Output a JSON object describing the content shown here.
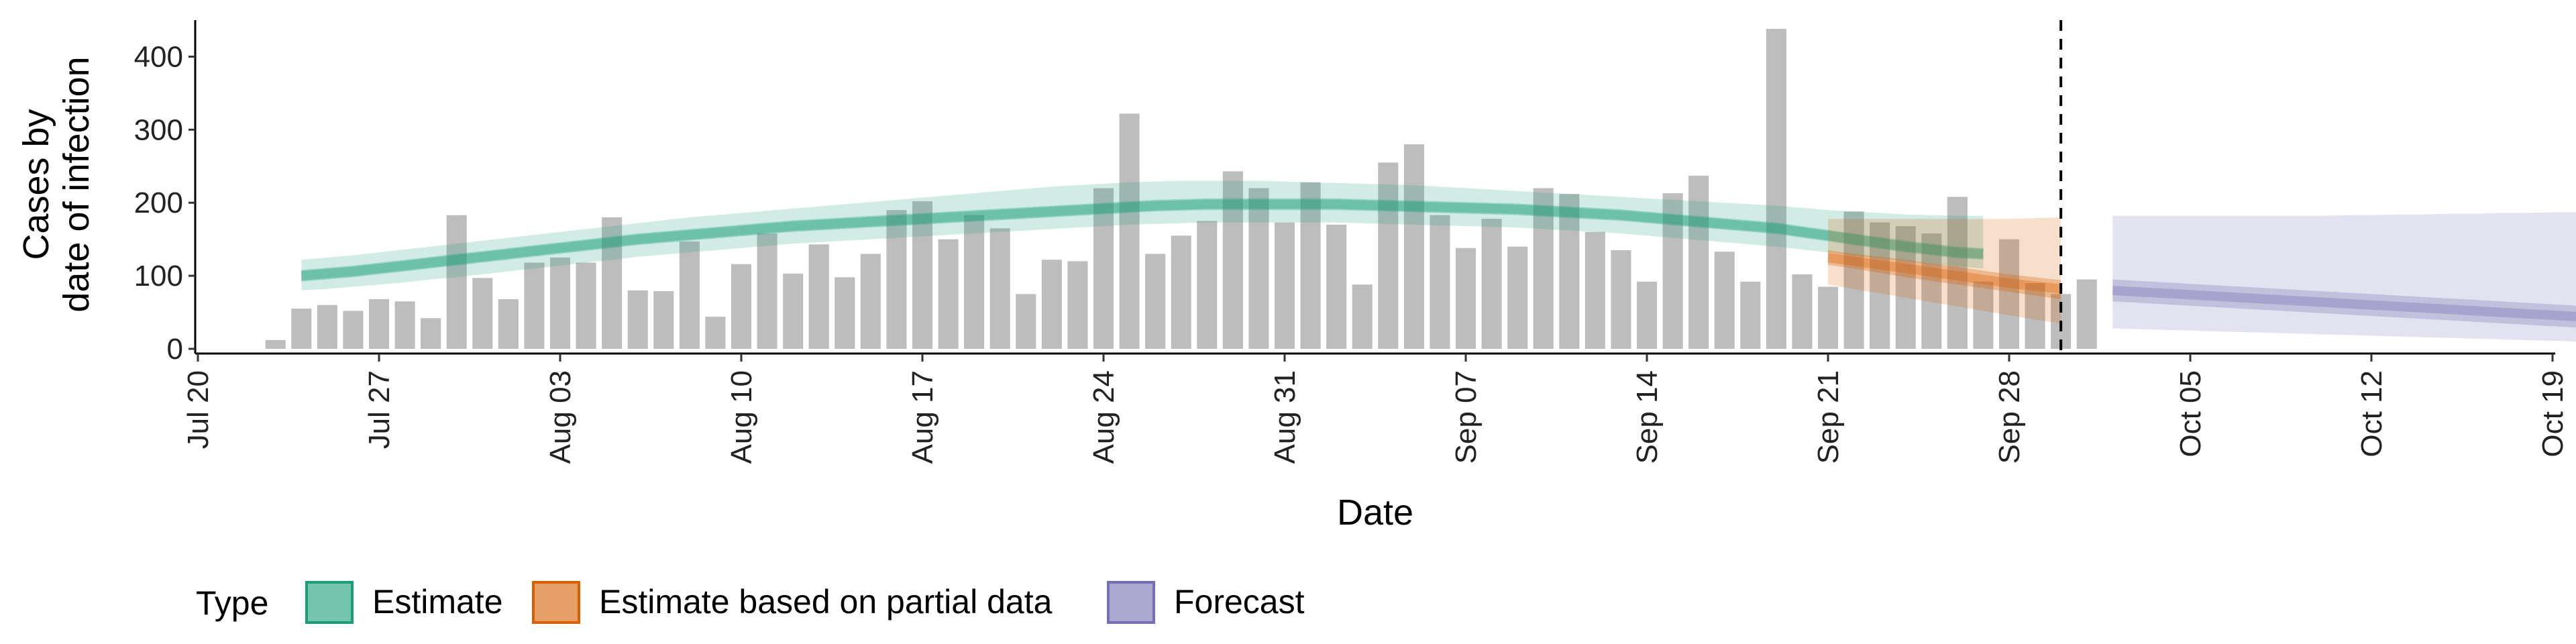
{
  "chart_data": {
    "type": "bar",
    "xlabel": "Date",
    "ylabel_lines": [
      "Cases by",
      "date of infection"
    ],
    "x_range": [
      "2020-07-20",
      "2020-10-19"
    ],
    "ylim": [
      0,
      450
    ],
    "yticks": [
      0,
      100,
      200,
      300,
      400
    ],
    "xticks": [
      {
        "date": "2020-07-20",
        "label": "Jul 20"
      },
      {
        "date": "2020-07-27",
        "label": "Jul 27"
      },
      {
        "date": "2020-08-03",
        "label": "Aug 03"
      },
      {
        "date": "2020-08-10",
        "label": "Aug 10"
      },
      {
        "date": "2020-08-17",
        "label": "Aug 17"
      },
      {
        "date": "2020-08-24",
        "label": "Aug 24"
      },
      {
        "date": "2020-08-31",
        "label": "Aug 31"
      },
      {
        "date": "2020-09-07",
        "label": "Sep 07"
      },
      {
        "date": "2020-09-14",
        "label": "Sep 14"
      },
      {
        "date": "2020-09-21",
        "label": "Sep 21"
      },
      {
        "date": "2020-09-28",
        "label": "Sep 28"
      },
      {
        "date": "2020-10-05",
        "label": "Oct 05"
      },
      {
        "date": "2020-10-12",
        "label": "Oct 12"
      },
      {
        "date": "2020-10-19",
        "label": "Oct 19"
      }
    ],
    "grid": false,
    "vline_date": "2020-09-30",
    "bars": {
      "start_date": "2020-07-23",
      "color": "#bdbdbd",
      "values": [
        12,
        55,
        60,
        52,
        68,
        65,
        42,
        183,
        97,
        68,
        118,
        125,
        118,
        180,
        80,
        79,
        147,
        44,
        116,
        158,
        103,
        143,
        98,
        130,
        190,
        202,
        150,
        183,
        165,
        75,
        122,
        120,
        220,
        322,
        130,
        155,
        175,
        243,
        220,
        173,
        228,
        170,
        88,
        255,
        280,
        183,
        138,
        178,
        140,
        220,
        212,
        160,
        135,
        92,
        213,
        237,
        133,
        92,
        438,
        102,
        85,
        188,
        173,
        168,
        158,
        208,
        92,
        150,
        90,
        75,
        95
      ]
    },
    "bands": [
      {
        "type": "Estimate",
        "start_date": "2020-07-24",
        "color": "#1b9e77",
        "median": [
          100,
          103,
          106,
          110,
          114,
          118,
          122,
          126,
          130,
          134,
          138,
          142,
          146,
          150,
          153,
          156,
          159,
          162,
          165,
          168,
          170,
          172,
          174,
          176,
          178,
          180,
          182,
          184,
          186,
          188,
          190,
          192,
          194,
          196,
          197,
          198,
          198,
          198,
          198,
          198,
          198,
          197,
          196,
          195,
          194,
          193,
          192,
          191,
          189,
          187,
          185,
          183,
          180,
          177,
          174,
          171,
          168,
          165,
          160,
          155,
          150,
          145,
          140,
          136,
          132,
          130
        ],
        "inner_low": [
          92,
          95,
          98,
          102,
          106,
          110,
          114,
          118,
          122,
          126,
          130,
          134,
          138,
          142,
          145,
          148,
          151,
          154,
          157,
          160,
          162,
          164,
          166,
          168,
          170,
          172,
          174,
          176,
          178,
          180,
          182,
          184,
          186,
          188,
          189,
          190,
          190,
          190,
          190,
          190,
          190,
          189,
          188,
          187,
          186,
          185,
          184,
          183,
          181,
          179,
          177,
          175,
          172,
          169,
          166,
          163,
          160,
          157,
          152,
          147,
          142,
          137,
          132,
          128,
          124,
          122
        ],
        "inner_high": [
          108,
          111,
          114,
          118,
          122,
          126,
          130,
          134,
          138,
          142,
          146,
          150,
          154,
          158,
          161,
          164,
          167,
          170,
          173,
          176,
          178,
          180,
          182,
          184,
          186,
          188,
          190,
          192,
          194,
          196,
          198,
          200,
          202,
          204,
          205,
          206,
          206,
          206,
          206,
          206,
          206,
          205,
          204,
          203,
          202,
          201,
          200,
          199,
          197,
          195,
          193,
          191,
          188,
          185,
          182,
          179,
          176,
          173,
          168,
          163,
          158,
          153,
          148,
          144,
          140,
          138
        ],
        "outer_low": [
          80,
          82,
          85,
          88,
          91,
          95,
          98,
          102,
          106,
          110,
          114,
          118,
          122,
          126,
          129,
          132,
          135,
          138,
          141,
          144,
          146,
          148,
          150,
          152,
          154,
          156,
          158,
          160,
          162,
          164,
          166,
          168,
          170,
          171,
          172,
          173,
          173,
          173,
          173,
          173,
          173,
          172,
          171,
          170,
          169,
          168,
          167,
          166,
          164,
          162,
          160,
          158,
          155,
          152,
          149,
          146,
          143,
          140,
          136,
          132,
          128,
          124,
          120,
          116,
          113,
          110
        ],
        "outer_high": [
          122,
          125,
          128,
          132,
          136,
          140,
          144,
          148,
          152,
          156,
          160,
          164,
          168,
          172,
          176,
          180,
          183,
          186,
          189,
          192,
          195,
          198,
          201,
          204,
          207,
          210,
          213,
          216,
          219,
          222,
          224,
          226,
          228,
          229,
          230,
          230,
          230,
          230,
          229,
          228,
          227,
          226,
          225,
          224,
          222,
          220,
          218,
          216,
          214,
          212,
          210,
          208,
          206,
          204,
          202,
          200,
          198,
          196,
          193,
          190,
          188,
          186,
          184,
          183,
          182,
          182
        ]
      },
      {
        "type": "Estimate based on partial data",
        "start_date": "2020-09-21",
        "color": "#d95f02",
        "median": [
          125,
          120,
          115,
          110,
          105,
          100,
          95,
          90,
          86,
          82
        ],
        "inner_low": [
          115,
          110,
          104,
          98,
          93,
          88,
          83,
          78,
          73,
          68
        ],
        "inner_high": [
          135,
          130,
          126,
          122,
          117,
          112,
          107,
          102,
          98,
          94
        ],
        "outer_low": [
          88,
          82,
          76,
          70,
          64,
          58,
          52,
          46,
          40,
          35
        ],
        "outer_high": [
          178,
          178,
          178,
          178,
          178,
          178,
          178,
          178,
          179,
          180
        ]
      },
      {
        "type": "Forecast",
        "start_date": "2020-10-02",
        "color": "#7570b3",
        "median": [
          80,
          78,
          76,
          74,
          72,
          70,
          68,
          66,
          64,
          62,
          60,
          58,
          56,
          54,
          52,
          50,
          48,
          46,
          44,
          42
        ],
        "inner_low": [
          65,
          63,
          61,
          59,
          57,
          55,
          53,
          51,
          49,
          47,
          45,
          43,
          41,
          39,
          37,
          35,
          33,
          31,
          29,
          28
        ],
        "inner_high": [
          95,
          93,
          91,
          89,
          87,
          85,
          83,
          81,
          79,
          77,
          75,
          73,
          71,
          69,
          67,
          65,
          63,
          61,
          59,
          57
        ],
        "outer_low": [
          28,
          27,
          26,
          25,
          24,
          23,
          22,
          21,
          20,
          19,
          18,
          17,
          16,
          15,
          14,
          13,
          12,
          11,
          10,
          5
        ],
        "outer_high": [
          182,
          182,
          182,
          182,
          182,
          182,
          182,
          182,
          182,
          183,
          183,
          184,
          184,
          185,
          185,
          186,
          186,
          187,
          187,
          188
        ]
      }
    ],
    "legend": {
      "position": "bottom",
      "title": "Type",
      "entries": [
        {
          "label": "Estimate",
          "color": "#1b9e77"
        },
        {
          "label": "Estimate based on partial data",
          "color": "#d95f02"
        },
        {
          "label": "Forecast",
          "color": "#7570b3"
        }
      ]
    }
  }
}
